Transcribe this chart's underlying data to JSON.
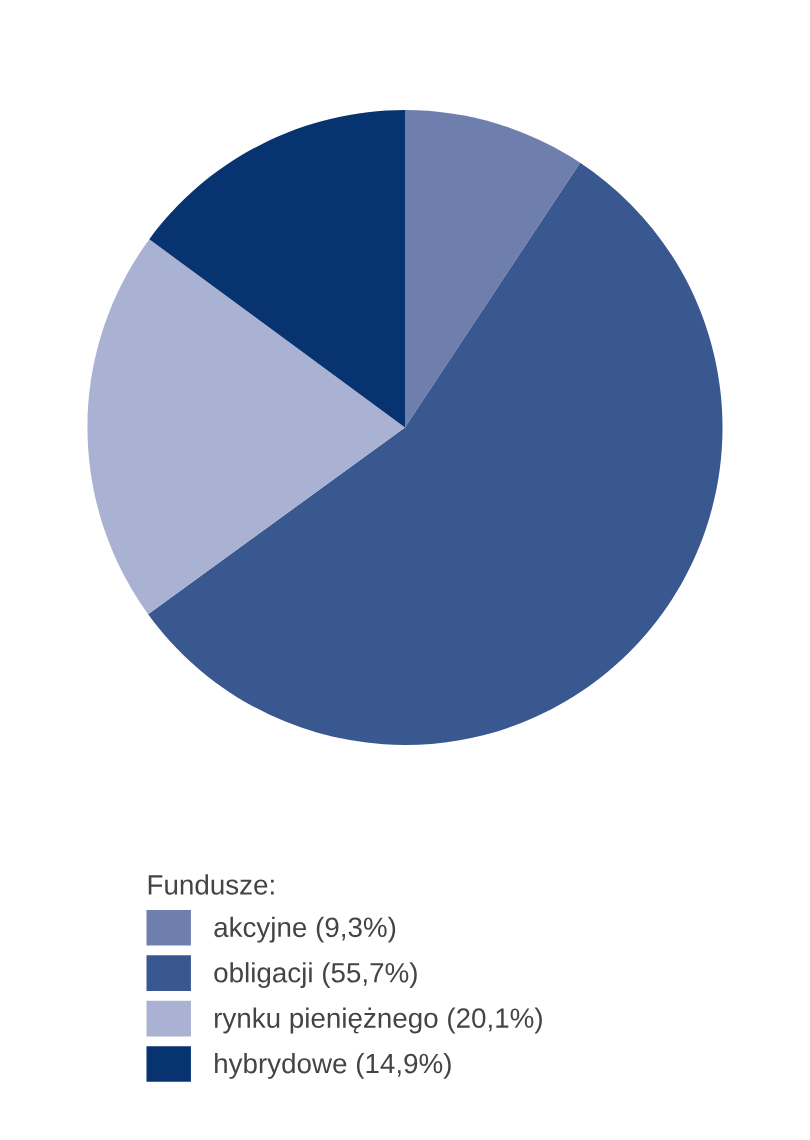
{
  "chart_data": {
    "type": "pie",
    "legend_title": "Fundusze:",
    "categories": [
      "akcyjne (9,3%)",
      "obligacji (55,7%)",
      "rynku pieniężnego (20,1%)",
      "hybrydowe (14,9%)"
    ],
    "values": [
      9.3,
      55.7,
      20.1,
      14.9
    ],
    "colors": [
      "#6e7fad",
      "#3a5890",
      "#a9b2d2",
      "#073370"
    ],
    "legend": "bottom"
  }
}
